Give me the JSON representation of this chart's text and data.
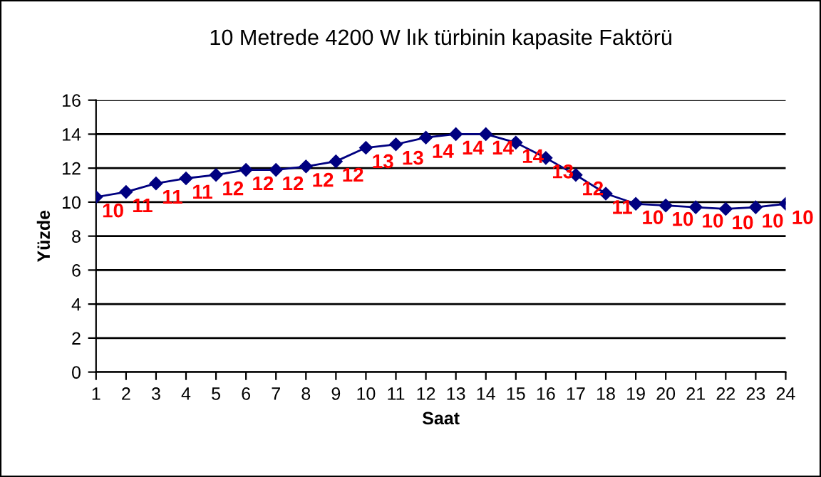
{
  "chart_data": {
    "type": "line",
    "title": "10 Metrede 4200 W lık türbinin kapasite Faktörü",
    "xlabel": "Saat",
    "ylabel": "Yüzde",
    "x": [
      1,
      2,
      3,
      4,
      5,
      6,
      7,
      8,
      9,
      10,
      11,
      12,
      13,
      14,
      15,
      16,
      17,
      18,
      19,
      20,
      21,
      22,
      23,
      24
    ],
    "series": [
      {
        "color": "#000080",
        "values": [
          10.3,
          10.6,
          11.1,
          11.4,
          11.6,
          11.9,
          11.9,
          12.1,
          12.4,
          13.2,
          13.4,
          13.8,
          14.0,
          14.0,
          13.5,
          12.6,
          11.6,
          10.5,
          9.9,
          9.8,
          9.7,
          9.6,
          9.7,
          9.9
        ],
        "value_labels": [
          "10",
          "11",
          "11",
          "11",
          "12",
          "12",
          "12",
          "12",
          "12",
          "13",
          "13",
          "14",
          "14",
          "14",
          "14",
          "13",
          "12",
          "11",
          "10",
          "10",
          "10",
          "10",
          "10",
          "10"
        ]
      }
    ],
    "xlim": [
      1,
      24
    ],
    "xticks": [
      1,
      2,
      3,
      4,
      5,
      6,
      7,
      8,
      9,
      10,
      11,
      12,
      13,
      14,
      15,
      16,
      17,
      18,
      19,
      20,
      21,
      22,
      23,
      24
    ],
    "ylim": [
      0,
      16
    ],
    "yticks": [
      0,
      2,
      4,
      6,
      8,
      10,
      12,
      14,
      16
    ],
    "grid": "y",
    "marker": "diamond",
    "line_style": "solid"
  }
}
